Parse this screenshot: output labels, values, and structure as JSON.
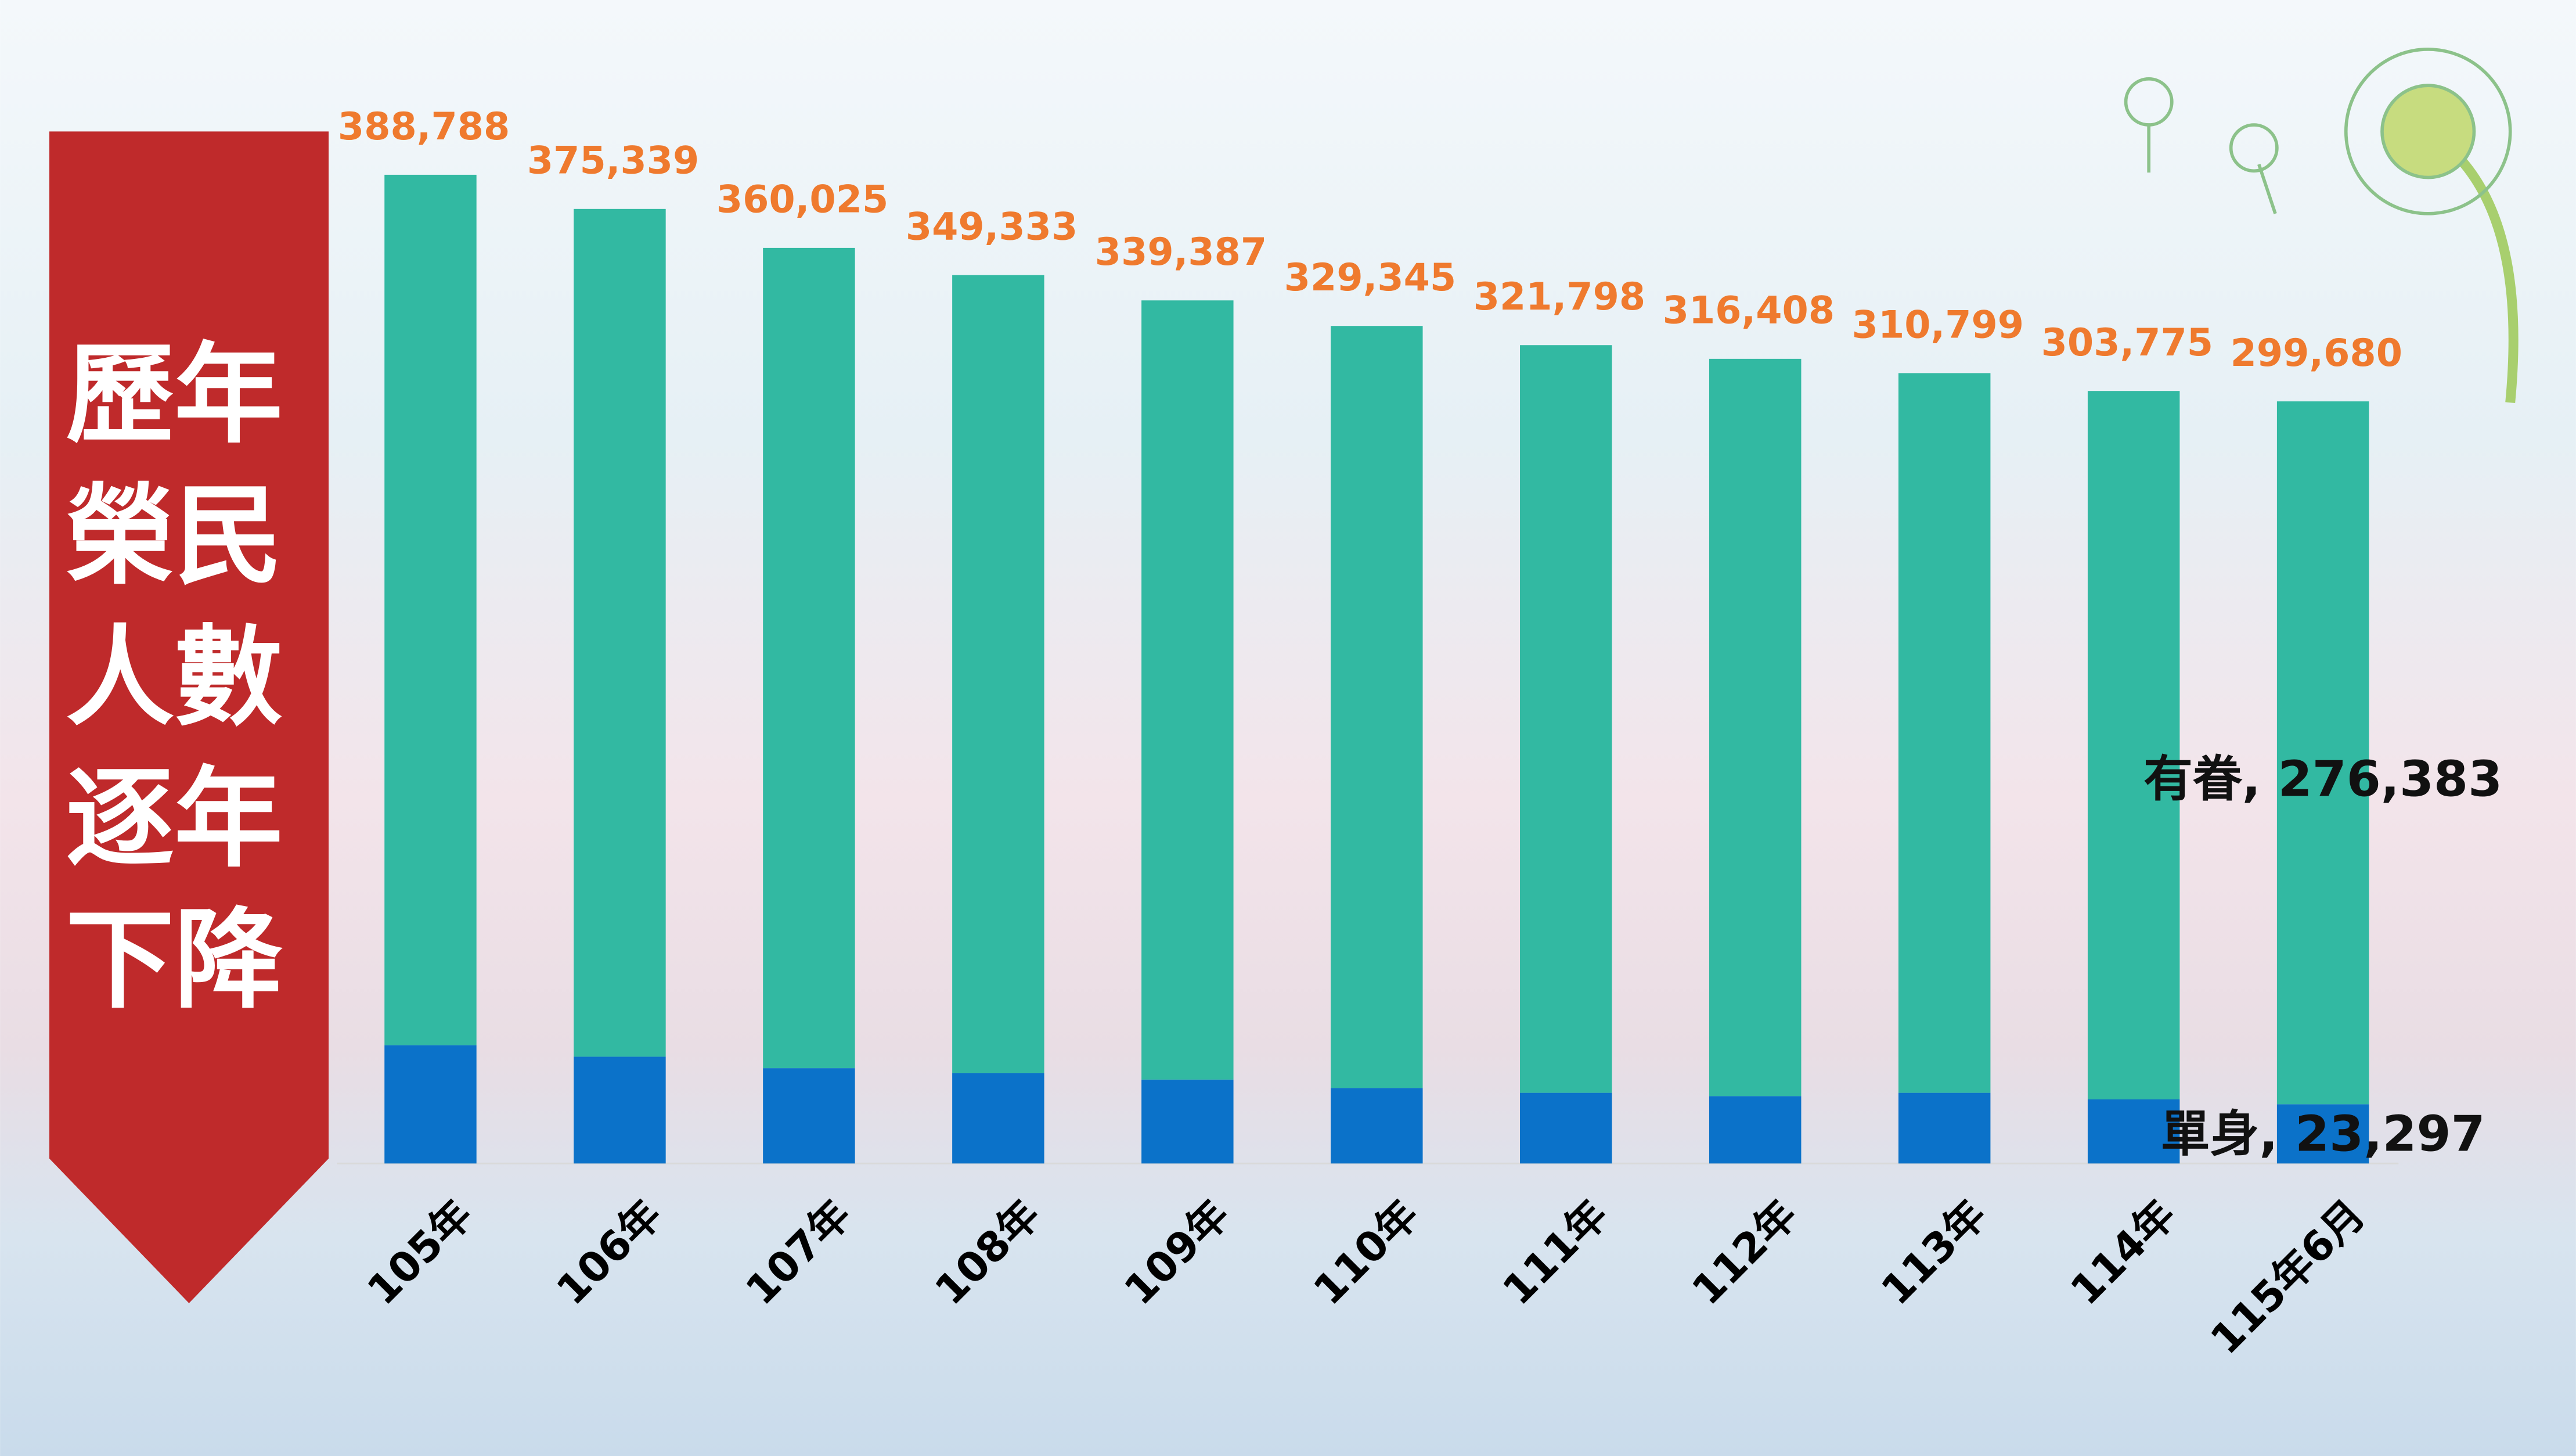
{
  "chart_data": {
    "type": "stacked_bar",
    "title": "歷年榮民人數逐年下降",
    "categories": [
      "105年",
      "106年",
      "107年",
      "108年",
      "109年",
      "110年",
      "111年",
      "112年",
      "113年",
      "114年",
      "115年6月"
    ],
    "series": [
      {
        "name": "單身",
        "color": "#0b72c9",
        "values": [
          46500,
          42000,
          37500,
          35500,
          33000,
          29700,
          27800,
          26500,
          27800,
          25200,
          23297
        ],
        "value_labels": [
          null,
          null,
          null,
          null,
          null,
          null,
          null,
          null,
          null,
          null,
          "單身, 23,297"
        ]
      },
      {
        "name": "有眷",
        "color": "#32b9a2",
        "values": [
          342288,
          333339,
          322525,
          313833,
          306387,
          299645,
          293998,
          289908,
          282999,
          278575,
          276383
        ],
        "value_labels": [
          null,
          null,
          null,
          null,
          null,
          null,
          null,
          null,
          null,
          null,
          "有眷, 276,383"
        ]
      }
    ],
    "totals": {
      "color": "#ef7a2e",
      "values": [
        388788,
        375339,
        360025,
        349333,
        339387,
        329345,
        321798,
        316408,
        310799,
        303775,
        299680
      ],
      "value_labels": [
        "388,788",
        "375,339",
        "360,025",
        "349,333",
        "339,387",
        "329,345",
        "321,798",
        "316,408",
        "310,799",
        "303,775",
        "299,680"
      ]
    },
    "ylim": [
      0,
      400000
    ]
  }
}
